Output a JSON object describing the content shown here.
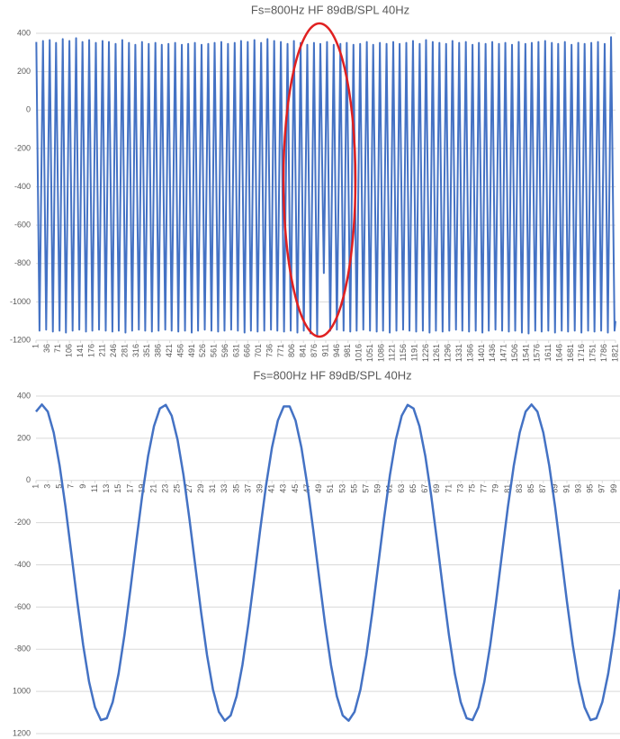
{
  "chart_data": [
    {
      "type": "line",
      "title": "Fs=800Hz HF 89dB/SPL 40Hz",
      "color": "#4472c4",
      "grid": true,
      "xlim": [
        1,
        1821
      ],
      "ylim": [
        -1200,
        400
      ],
      "yticks": [
        400,
        200,
        0,
        -200,
        -400,
        -600,
        -800,
        -1000,
        -1200
      ],
      "xticks": [
        1,
        36,
        71,
        106,
        141,
        176,
        211,
        246,
        281,
        316,
        351,
        386,
        421,
        456,
        491,
        526,
        561,
        596,
        631,
        666,
        701,
        736,
        771,
        806,
        841,
        876,
        911,
        946,
        981,
        1016,
        1051,
        1086,
        1121,
        1156,
        1191,
        1226,
        1261,
        1296,
        1331,
        1366,
        1401,
        1436,
        1471,
        1506,
        1541,
        1576,
        1611,
        1646,
        1681,
        1716,
        1751,
        1786,
        1821
      ],
      "x": [
        2,
        12,
        23,
        33,
        44,
        54,
        64,
        75,
        85,
        95,
        106,
        116,
        127,
        137,
        147,
        158,
        168,
        178,
        189,
        199,
        210,
        220,
        230,
        241,
        251,
        261,
        272,
        282,
        293,
        303,
        313,
        324,
        334,
        344,
        355,
        365,
        376,
        386,
        396,
        407,
        417,
        427,
        438,
        448,
        459,
        469,
        479,
        490,
        500,
        510,
        521,
        531,
        542,
        552,
        562,
        573,
        583,
        593,
        604,
        614,
        625,
        635,
        645,
        656,
        666,
        676,
        687,
        697,
        708,
        718,
        728,
        739,
        749,
        759,
        770,
        780,
        791,
        801,
        811,
        822,
        832,
        842,
        853,
        863,
        874,
        884,
        894,
        905,
        915,
        925,
        936,
        946,
        957,
        967,
        977,
        988,
        998,
        1008,
        1019,
        1029,
        1040,
        1050,
        1060,
        1071,
        1081,
        1091,
        1102,
        1112,
        1123,
        1133,
        1143,
        1154,
        1164,
        1174,
        1185,
        1195,
        1206,
        1216,
        1226,
        1237,
        1247,
        1257,
        1268,
        1278,
        1289,
        1299,
        1309,
        1320,
        1330,
        1340,
        1351,
        1361,
        1372,
        1382,
        1392,
        1403,
        1413,
        1423,
        1434,
        1444,
        1455,
        1465,
        1475,
        1486,
        1496,
        1506,
        1517,
        1527,
        1538,
        1548,
        1558,
        1569,
        1579,
        1589,
        1600,
        1610,
        1621,
        1631,
        1641,
        1652,
        1662,
        1672,
        1683,
        1693,
        1704,
        1714,
        1724,
        1735,
        1745,
        1755,
        1766,
        1776,
        1787,
        1797,
        1807,
        1818,
        1821
      ],
      "values": [
        355,
        -1150,
        360,
        -1145,
        365,
        -1155,
        350,
        -1150,
        370,
        -1160,
        360,
        -1150,
        375,
        -1145,
        355,
        -1155,
        365,
        -1150,
        350,
        -1145,
        360,
        -1150,
        355,
        -1155,
        345,
        -1150,
        365,
        -1160,
        350,
        -1150,
        340,
        -1145,
        355,
        -1150,
        345,
        -1155,
        350,
        -1150,
        340,
        -1145,
        345,
        -1150,
        350,
        -1155,
        340,
        -1150,
        345,
        -1160,
        350,
        -1150,
        340,
        -1145,
        345,
        -1150,
        350,
        -1155,
        355,
        -1150,
        345,
        -1145,
        350,
        -1150,
        360,
        -1160,
        355,
        -1150,
        365,
        -1155,
        350,
        -1150,
        370,
        -1145,
        360,
        -1150,
        355,
        -1155,
        345,
        -1150,
        360,
        -1160,
        350,
        -1150,
        340,
        -1165,
        350,
        -1180,
        345,
        -850,
        355,
        -1150,
        340,
        -1145,
        345,
        -1150,
        350,
        -1155,
        340,
        -1150,
        345,
        -1145,
        355,
        -1150,
        340,
        -1155,
        350,
        -1150,
        345,
        -1160,
        355,
        -1150,
        345,
        -1145,
        350,
        -1150,
        360,
        -1155,
        345,
        -1150,
        365,
        -1160,
        355,
        -1150,
        350,
        -1155,
        345,
        -1150,
        360,
        -1145,
        350,
        -1150,
        355,
        -1155,
        340,
        -1150,
        350,
        -1160,
        345,
        -1150,
        355,
        -1145,
        345,
        -1150,
        350,
        -1155,
        340,
        -1150,
        355,
        -1160,
        345,
        -1165,
        350,
        -1150,
        355,
        -1155,
        360,
        -1150,
        350,
        -1160,
        345,
        -1150,
        355,
        -1155,
        340,
        -1150,
        350,
        -1160,
        345,
        -1150,
        350,
        -1155,
        355,
        -1150,
        345,
        -1160,
        380,
        -1150,
        -1100
      ]
    },
    {
      "type": "line",
      "title": "Fs=800Hz HF 89dB/SPL 40Hz",
      "color": "#4472c4",
      "grid": true,
      "xlim": [
        1,
        100
      ],
      "ylim": [
        -1200,
        400
      ],
      "yticks": [
        400,
        200,
        0,
        -200,
        -400,
        -600,
        -800,
        {
          "value": -1000,
          "label": "1000"
        },
        {
          "value": -1200,
          "label": "1200"
        }
      ],
      "xticks": [
        1,
        3,
        5,
        7,
        9,
        11,
        13,
        15,
        17,
        19,
        21,
        23,
        25,
        27,
        29,
        31,
        33,
        35,
        37,
        39,
        41,
        43,
        45,
        47,
        49,
        51,
        53,
        55,
        57,
        59,
        61,
        63,
        65,
        67,
        69,
        71,
        73,
        75,
        77,
        79,
        81,
        83,
        85,
        87,
        89,
        91,
        93,
        95,
        97,
        99
      ],
      "x": [
        1,
        2,
        3,
        4,
        5,
        6,
        7,
        8,
        9,
        10,
        11,
        12,
        13,
        14,
        15,
        16,
        17,
        18,
        19,
        20,
        21,
        22,
        23,
        24,
        25,
        26,
        27,
        28,
        29,
        30,
        31,
        32,
        33,
        34,
        35,
        36,
        37,
        38,
        39,
        40,
        41,
        42,
        43,
        44,
        45,
        46,
        47,
        48,
        49,
        50,
        51,
        52,
        53,
        54,
        55,
        56,
        57,
        58,
        59,
        60,
        61,
        62,
        63,
        64,
        65,
        66,
        67,
        68,
        69,
        70,
        71,
        72,
        73,
        74,
        75,
        76,
        77,
        78,
        79,
        80,
        81,
        82,
        83,
        84,
        85,
        86,
        87,
        88,
        89,
        90,
        91,
        92,
        93,
        94,
        95,
        96,
        97,
        98,
        99,
        100
      ],
      "values": [
        326,
        360,
        326,
        227,
        71,
        -125,
        -347,
        -573,
        -781,
        -955,
        -1075,
        -1136,
        -1127,
        -1051,
        -916,
        -732,
        -517,
        -291,
        -73,
        115,
        257,
        341,
        358,
        307,
        193,
        26,
        -180,
        -404,
        -627,
        -829,
        -991,
        -1097,
        -1139,
        -1114,
        -1023,
        -874,
        -680,
        -461,
        -235,
        -23,
        155,
        284,
        351,
        351,
        284,
        155,
        -23,
        -235,
        -461,
        -680,
        -874,
        -1023,
        -1114,
        -1139,
        -1097,
        -991,
        -829,
        -627,
        -404,
        -180,
        26,
        193,
        307,
        358,
        341,
        257,
        115,
        -73,
        -291,
        -517,
        -732,
        -916,
        -1051,
        -1127,
        -1136,
        -1075,
        -955,
        -781,
        -573,
        -347,
        -125,
        71,
        227,
        326,
        360,
        326,
        227,
        71,
        -125,
        -347,
        -573,
        -781,
        -955,
        -1075,
        -1136,
        -1127,
        -1051,
        -916,
        -732,
        -517
      ]
    }
  ]
}
